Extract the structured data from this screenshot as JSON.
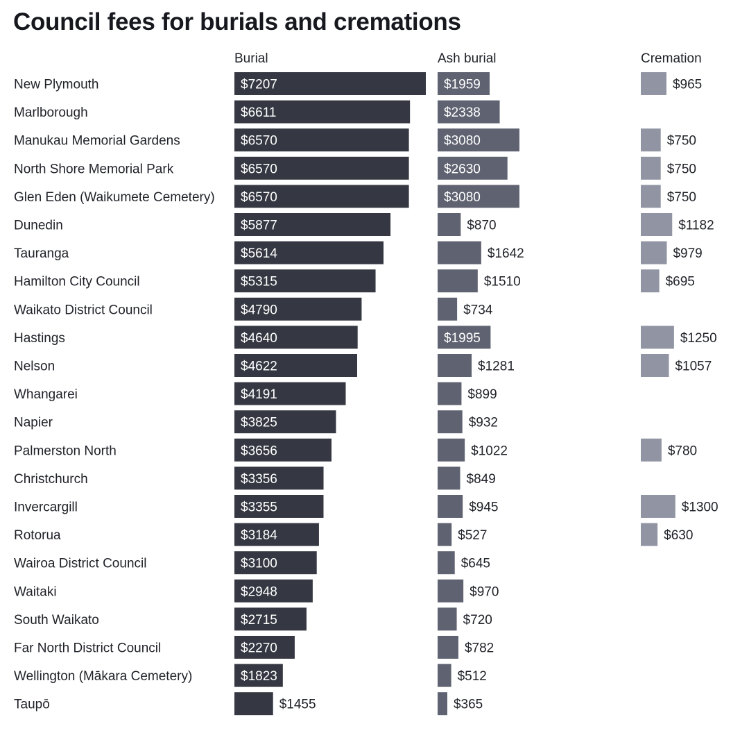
{
  "chart_data": {
    "type": "bar",
    "title": "Council fees for burials and cremations",
    "value_prefix": "$",
    "columns": [
      "Burial",
      "Ash burial",
      "Cremation"
    ],
    "colors": {
      "Burial": "#353842",
      "Ash burial": "#5f6270",
      "Cremation": "#9195a3"
    },
    "categories": [
      "New Plymouth",
      "Marlborough",
      "Manukau Memorial Gardens",
      "North Shore Memorial Park",
      "Glen Eden (Waikumete Cemetery)",
      "Dunedin",
      "Tauranga",
      "Hamilton City Council",
      "Waikato District Council",
      "Hastings",
      "Nelson",
      "Whangarei",
      "Napier",
      "Palmerston North",
      "Christchurch",
      "Invercargill",
      "Rotorua",
      "Wairoa District Council",
      "Waitaki",
      "South Waikato",
      "Far North District Council",
      "Wellington (Mākara Cemetery)",
      "Taupō"
    ],
    "series": [
      {
        "name": "Burial",
        "values": [
          7207,
          6611,
          6570,
          6570,
          6570,
          5877,
          5614,
          5315,
          4790,
          4640,
          4622,
          4191,
          3825,
          3656,
          3356,
          3355,
          3184,
          3100,
          2948,
          2715,
          2270,
          1823,
          1455
        ]
      },
      {
        "name": "Ash burial",
        "values": [
          1959,
          2338,
          3080,
          2630,
          3080,
          870,
          1642,
          1510,
          734,
          1995,
          1281,
          899,
          932,
          1022,
          849,
          945,
          527,
          645,
          970,
          720,
          782,
          512,
          365
        ]
      },
      {
        "name": "Cremation",
        "values": [
          965,
          null,
          750,
          750,
          750,
          1182,
          979,
          695,
          null,
          1250,
          1057,
          null,
          null,
          780,
          null,
          1300,
          630,
          null,
          null,
          null,
          null,
          null,
          null
        ]
      }
    ]
  }
}
